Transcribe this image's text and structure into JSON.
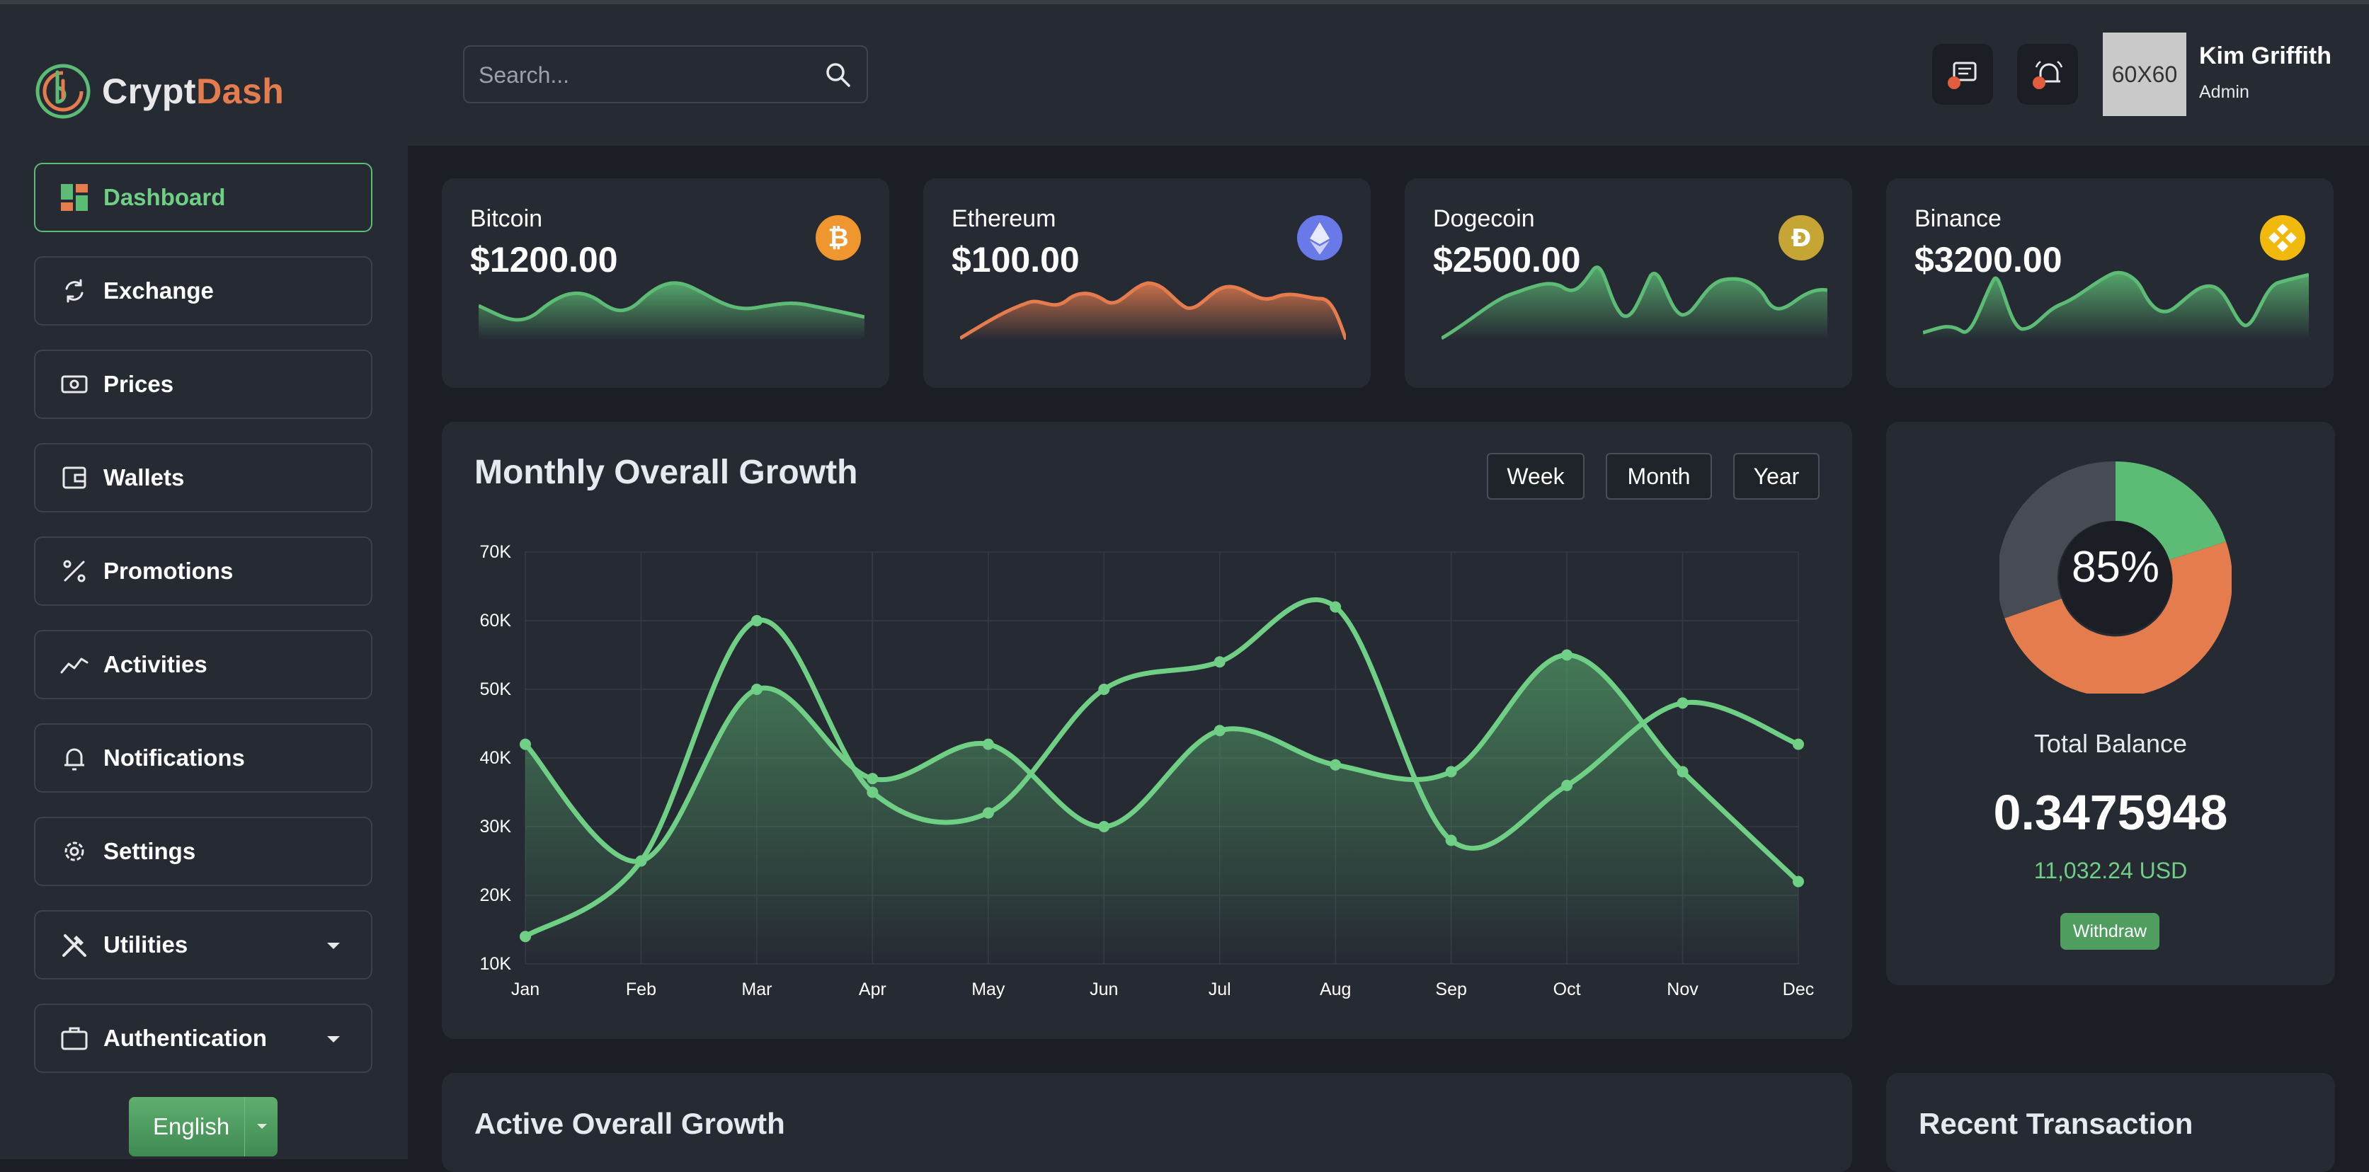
{
  "app": {
    "logo_part1": "Crypt",
    "logo_part2": "Dash",
    "colors": {
      "accent": "#5cbb74",
      "orange": "#e57c4d",
      "panel": "#262a33",
      "background": "#1b1e25"
    }
  },
  "header": {
    "search_placeholder": "Search...",
    "user_name": "Kim Griffith",
    "user_role": "Admin",
    "avatar_text": "60X60"
  },
  "sidebar": {
    "items": [
      {
        "label": "Dashboard",
        "icon": "dashboard-icon"
      },
      {
        "label": "Exchange",
        "icon": "exchange-icon"
      },
      {
        "label": "Prices",
        "icon": "prices-icon"
      },
      {
        "label": "Wallets",
        "icon": "wallet-icon"
      },
      {
        "label": "Promotions",
        "icon": "percent-icon"
      },
      {
        "label": "Activities",
        "icon": "activity-icon"
      },
      {
        "label": "Notifications",
        "icon": "bell-icon"
      },
      {
        "label": "Settings",
        "icon": "gear-icon"
      },
      {
        "label": "Utilities",
        "icon": "tools-icon"
      },
      {
        "label": "Authentication",
        "icon": "briefcase-icon"
      }
    ],
    "language": "English"
  },
  "coins": [
    {
      "name": "Bitcoin",
      "price": "$1200.00",
      "icon": "bitcoin-icon",
      "color": "#f0962e"
    },
    {
      "name": "Ethereum",
      "price": "$100.00",
      "icon": "ethereum-icon",
      "color": "#6a79e8"
    },
    {
      "name": "Dogecoin",
      "price": "$2500.00",
      "icon": "dogecoin-icon",
      "color": "#c5a634"
    },
    {
      "name": "Binance",
      "price": "$3200.00",
      "icon": "binance-icon",
      "color": "#f0b90b"
    }
  ],
  "growth": {
    "title": "Monthly Overall Growth",
    "periods": [
      "Week",
      "Month",
      "Year"
    ]
  },
  "balance": {
    "percent": "85%",
    "label": "Total Balance",
    "value": "0.3475948",
    "usd": "11,032.24 USD",
    "withdraw": "Withdraw"
  },
  "bottom": {
    "active_title": "Active Overall Growth",
    "recent_title": "Recent Transaction"
  },
  "chart_data": {
    "type": "area",
    "title": "",
    "xlabel": "",
    "ylabel": "",
    "categories": [
      "Jan",
      "Feb",
      "Mar",
      "Apr",
      "May",
      "Jun",
      "Jul",
      "Aug",
      "Sep",
      "Oct",
      "Nov",
      "Dec"
    ],
    "ylim": [
      10000,
      70000
    ],
    "yticks": [
      "10K",
      "20K",
      "30K",
      "40K",
      "50K",
      "60K",
      "70K"
    ],
    "grid": true,
    "series": [
      {
        "values": [
          14000,
          25000,
          60000,
          35000,
          32000,
          50000,
          54000,
          62000,
          28000,
          36000,
          48000,
          42000
        ],
        "filled": false
      },
      {
        "values": [
          42000,
          25000,
          50000,
          37000,
          42000,
          30000,
          44000,
          39000,
          38000,
          55000,
          38000,
          22000
        ],
        "filled": true
      }
    ]
  }
}
